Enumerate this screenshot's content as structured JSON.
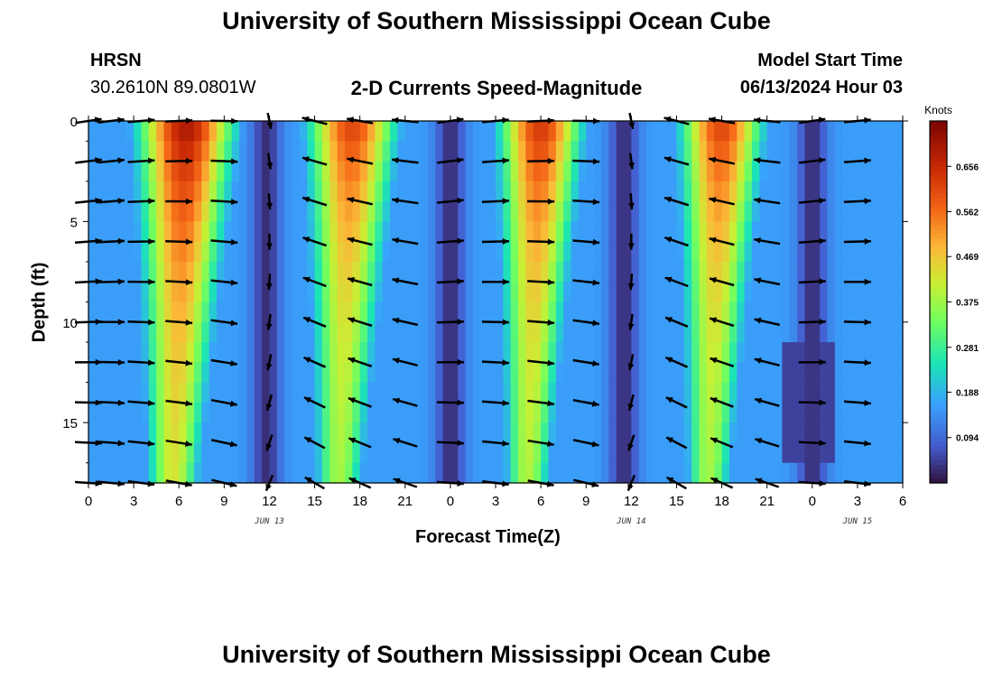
{
  "page_title": "University of Southern Mississippi Ocean Cube",
  "footer_title": "University of Southern Mississippi Ocean Cube",
  "station": {
    "name": "HRSN",
    "coords": "30.2610N  89.0801W"
  },
  "model": {
    "label": "Model Start Time",
    "time": "06/13/2024 Hour 03"
  },
  "chart_data": {
    "type": "heatmap",
    "title": "2-D Currents Speed-Magnitude",
    "xlabel": "Forecast Time(Z)",
    "ylabel": "Depth (ft)",
    "colorbar_label": "Knots",
    "colorbar_ticks": [
      "0.656",
      "0.562",
      "0.469",
      "0.375",
      "0.281",
      "0.188",
      "0.094"
    ],
    "colorbar_range": [
      0.0,
      0.75
    ],
    "ylim": [
      0,
      18
    ],
    "yticks": [
      0,
      5,
      10,
      15
    ],
    "ytick_labels": [
      "0",
      "5",
      "10",
      "15"
    ],
    "xlim_hours": [
      0,
      54
    ],
    "xticks_hours": [
      0,
      3,
      6,
      9,
      12,
      15,
      18,
      21,
      24,
      27,
      30,
      33,
      36,
      39,
      42,
      45,
      48,
      51,
      54
    ],
    "xtick_labels": [
      "0",
      "3",
      "6",
      "9",
      "12",
      "15",
      "18",
      "21",
      "0",
      "3",
      "6",
      "9",
      "12",
      "15",
      "18",
      "21",
      "0",
      "3",
      "6"
    ],
    "date_labels": [
      {
        "text": "JUN 13",
        "hour": 12
      },
      {
        "text": "JUN 14",
        "hour": 36
      },
      {
        "text": "JUN 15",
        "hour": 51
      }
    ],
    "speed_peaks": [
      {
        "center_hour": 6.5,
        "width_hours": 3.2,
        "peak_knots": 0.7
      },
      {
        "center_hour": 17.5,
        "width_hours": 3.0,
        "peak_knots": 0.62
      },
      {
        "center_hour": 30.0,
        "width_hours": 2.8,
        "peak_knots": 0.64
      },
      {
        "center_hour": 42.0,
        "width_hours": 2.8,
        "peak_knots": 0.62
      }
    ],
    "vector_depths_ft": [
      0,
      2,
      4,
      6,
      8,
      10,
      12,
      14,
      16,
      18
    ],
    "vector_hours": [
      0,
      1.5,
      3.5,
      6,
      9,
      12,
      15,
      18,
      21,
      24,
      27,
      30,
      33,
      36,
      39,
      42,
      45,
      48,
      51
    ]
  }
}
